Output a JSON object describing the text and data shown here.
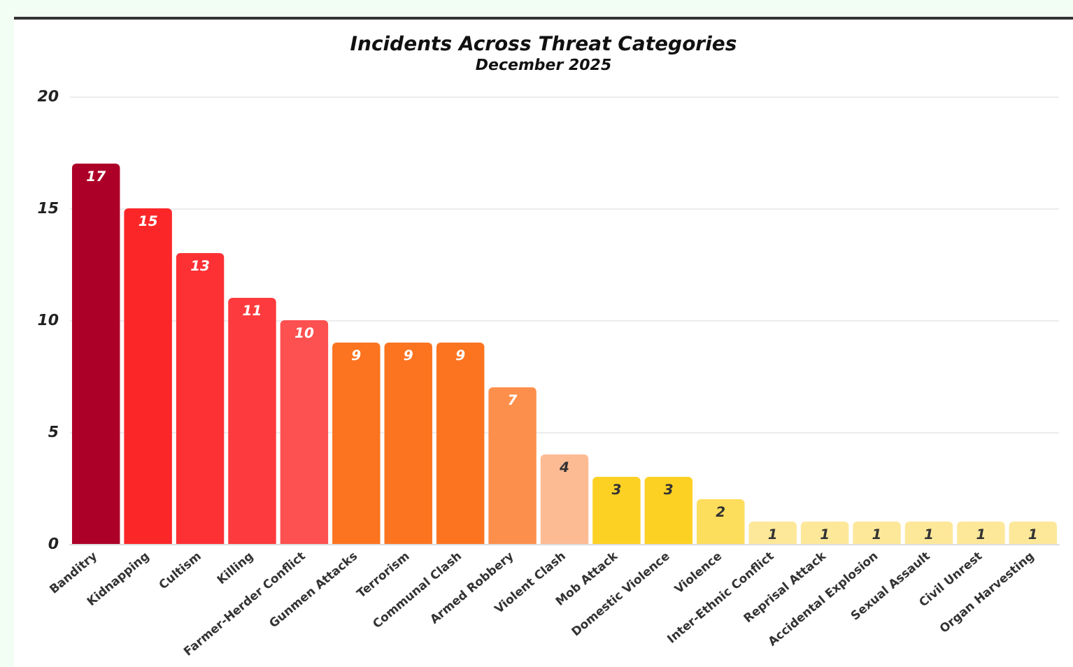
{
  "chart_data": {
    "type": "bar",
    "title": "Incidents Across Threat Categories",
    "subtitle": "December 2025",
    "categories": [
      "Banditry",
      "Kidnapping",
      "Cultism",
      "Killing",
      "Farmer-Herder Conflict",
      "Gunmen Attacks",
      "Terrorism",
      "Communal Clash",
      "Armed Robbery",
      "Violent Clash",
      "Mob Attack",
      "Domestic Violence",
      "Violence",
      "Inter-Ethnic Conflict",
      "Reprisal Attack",
      "Accidental Explosion",
      "Sexual Assault",
      "Civil Unrest",
      "Organ Harvesting"
    ],
    "values": [
      17,
      15,
      13,
      11,
      10,
      9,
      9,
      9,
      7,
      4,
      3,
      3,
      2,
      1,
      1,
      1,
      1,
      1,
      1
    ],
    "colors": [
      "#ad0029",
      "#fb2628",
      "#fd3034",
      "#fd3a3d",
      "#fd5050",
      "#fd7420",
      "#fd7420",
      "#fd7420",
      "#fd8f4c",
      "#fdbb94",
      "#fdd124",
      "#fdd124",
      "#fddd5c",
      "#fde89a",
      "#fde89a",
      "#fde89a",
      "#fde89a",
      "#fde89a",
      "#fde89a"
    ],
    "ylim": [
      0,
      20
    ],
    "yticks": [
      0,
      5,
      10,
      15,
      20
    ],
    "grid": "y",
    "data_labels": true
  }
}
